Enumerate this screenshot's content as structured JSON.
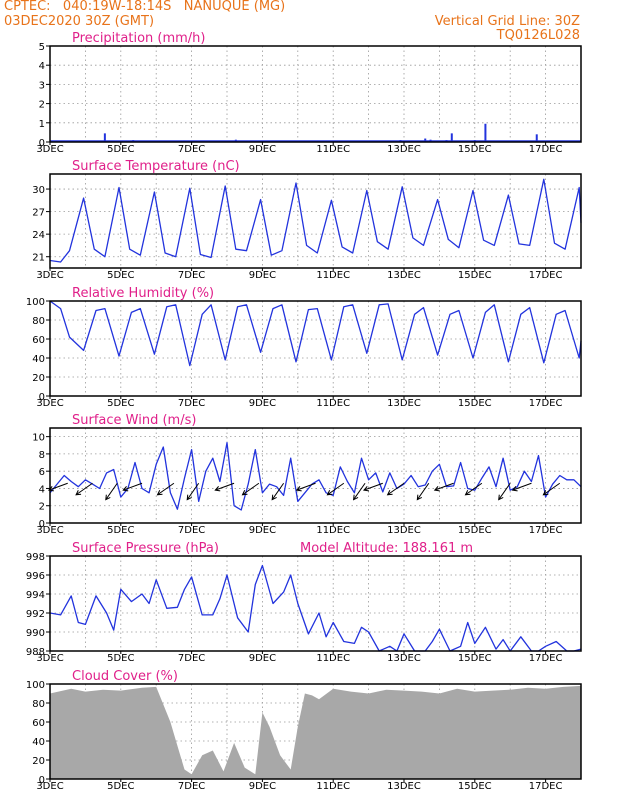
{
  "header": {
    "line1": "CPTEC:   040:19W-18:14S   NANUQUE (MG)",
    "line2": "03DEC2020 30Z (GMT)",
    "grid_note": "Vertical Grid Line: 30Z",
    "code": "TQ0126L028"
  },
  "x_labels": [
    "3DEC",
    "5DEC",
    "7DEC",
    "9DEC",
    "11DEC",
    "13DEC",
    "15DEC",
    "17DEC"
  ],
  "colors": {
    "line": "#2233dd",
    "frame": "#000000",
    "grid": "#999999",
    "cloud": "#a8a8a8",
    "title": "#e0208a",
    "header": "#e8731a"
  },
  "chart_data": [
    {
      "type": "bar",
      "title": "Precipitation (mm/h)",
      "ylim": [
        0,
        5
      ],
      "yticks": [
        0,
        1,
        2,
        3,
        4,
        5
      ],
      "x_days": [
        0,
        15
      ],
      "events": [
        [
          1.55,
          0.45
        ],
        [
          2.35,
          0.1
        ],
        [
          3.8,
          0.08
        ],
        [
          5.25,
          0.12
        ],
        [
          9.9,
          0.1
        ],
        [
          10.6,
          0.18
        ],
        [
          10.75,
          0.12
        ],
        [
          11.2,
          0.1
        ],
        [
          11.35,
          0.45
        ],
        [
          12.0,
          0.1
        ],
        [
          12.3,
          0.95
        ],
        [
          13.75,
          0.4
        ]
      ]
    },
    {
      "type": "line",
      "title": "Surface Temperature (nC)",
      "ylim": [
        19.5,
        32
      ],
      "yticks": [
        21,
        24,
        27,
        30
      ],
      "series": [
        {
          "x": [
            0,
            0.3,
            0.55,
            0.95,
            1.25,
            1.55,
            1.95,
            2.25,
            2.55,
            2.95,
            3.25,
            3.55,
            3.95,
            4.25,
            4.55,
            4.95,
            5.25,
            5.55,
            5.95,
            6.25,
            6.55,
            6.95,
            7.25,
            7.55,
            7.95,
            8.25,
            8.55,
            8.95,
            9.25,
            9.55,
            9.95,
            10.25,
            10.55,
            10.95,
            11.25,
            11.55,
            11.95,
            12.25,
            12.55,
            12.95,
            13.25,
            13.55,
            13.95,
            14.25,
            14.55,
            14.95,
            15
          ],
          "y": [
            20.5,
            20.3,
            21.8,
            28.8,
            22.0,
            21.0,
            30.2,
            22.0,
            21.2,
            29.6,
            21.5,
            21.0,
            30.1,
            21.3,
            20.9,
            30.4,
            22.0,
            21.8,
            28.6,
            21.2,
            21.8,
            30.8,
            22.5,
            21.5,
            28.5,
            22.3,
            21.5,
            29.8,
            23.0,
            22.0,
            30.3,
            23.5,
            22.5,
            28.6,
            23.3,
            22.2,
            29.8,
            23.2,
            22.5,
            29.2,
            22.7,
            22.5,
            31.3,
            22.8,
            22.0,
            30.2,
            25.5
          ]
        }
      ],
      "xlabel": "",
      "ylabel": ""
    },
    {
      "type": "line",
      "title": "Relative Humidity (%)",
      "ylim": [
        0,
        100
      ],
      "yticks": [
        0,
        20,
        40,
        60,
        80,
        100
      ],
      "series": [
        {
          "x": [
            0,
            0.3,
            0.55,
            0.95,
            1.3,
            1.55,
            1.95,
            2.3,
            2.55,
            2.95,
            3.3,
            3.55,
            3.95,
            4.3,
            4.55,
            4.95,
            5.3,
            5.55,
            5.95,
            6.3,
            6.55,
            6.95,
            7.3,
            7.55,
            7.95,
            8.3,
            8.55,
            8.95,
            9.3,
            9.55,
            9.95,
            10.3,
            10.55,
            10.95,
            11.3,
            11.55,
            11.95,
            12.3,
            12.55,
            12.95,
            13.3,
            13.55,
            13.95,
            14.3,
            14.55,
            14.95,
            15
          ],
          "y": [
            100,
            92,
            62,
            48,
            90,
            92,
            42,
            88,
            92,
            44,
            94,
            96,
            32,
            86,
            96,
            38,
            94,
            96,
            46,
            92,
            96,
            36,
            91,
            92,
            38,
            94,
            96,
            45,
            96,
            97,
            38,
            86,
            93,
            43,
            86,
            90,
            40,
            88,
            96,
            36,
            86,
            93,
            35,
            86,
            90,
            40,
            58
          ]
        }
      ],
      "xlabel": "",
      "ylabel": ""
    },
    {
      "type": "line",
      "title": "Surface Wind (m/s)",
      "ylim": [
        0,
        11
      ],
      "yticks": [
        0,
        2,
        4,
        6,
        8,
        10
      ],
      "series": [
        {
          "x": [
            0,
            0.2,
            0.4,
            0.6,
            0.8,
            1.0,
            1.2,
            1.4,
            1.6,
            1.8,
            2.0,
            2.2,
            2.4,
            2.6,
            2.8,
            3.0,
            3.2,
            3.4,
            3.6,
            3.8,
            4.0,
            4.2,
            4.4,
            4.6,
            4.8,
            5.0,
            5.2,
            5.4,
            5.6,
            5.8,
            6.0,
            6.2,
            6.4,
            6.6,
            6.8,
            7.0,
            7.2,
            7.4,
            7.6,
            7.8,
            8.0,
            8.2,
            8.4,
            8.6,
            8.8,
            9.0,
            9.2,
            9.4,
            9.6,
            9.8,
            10.0,
            10.2,
            10.4,
            10.6,
            10.8,
            11.0,
            11.2,
            11.4,
            11.6,
            11.8,
            12.0,
            12.2,
            12.4,
            12.6,
            12.8,
            13.0,
            13.2,
            13.4,
            13.6,
            13.8,
            14.0,
            14.2,
            14.4,
            14.6,
            14.8,
            15.0
          ],
          "y": [
            3.5,
            4.5,
            5.5,
            4.8,
            4.2,
            5.0,
            4.5,
            4.0,
            5.8,
            6.2,
            3.0,
            4.0,
            7.0,
            4.0,
            3.5,
            6.8,
            8.8,
            3.5,
            1.6,
            5.2,
            8.5,
            2.5,
            6.0,
            7.5,
            4.8,
            9.3,
            2.0,
            1.5,
            4.5,
            8.5,
            3.5,
            4.5,
            4.2,
            3.2,
            7.5,
            2.5,
            3.5,
            4.5,
            5.0,
            3.5,
            3.2,
            6.5,
            4.8,
            3.5,
            7.5,
            5.0,
            5.8,
            3.6,
            5.8,
            4.0,
            4.5,
            5.5,
            4.2,
            4.4,
            6.0,
            6.8,
            4.2,
            4.3,
            7.0,
            4.0,
            3.8,
            5.2,
            6.5,
            4.2,
            7.5,
            3.8,
            4.2,
            6.0,
            4.8,
            7.8,
            3.0,
            4.5,
            5.5,
            5.0,
            5.0,
            4.2
          ]
        }
      ],
      "barb_x": [
        0.5,
        1.2,
        1.9,
        2.6,
        3.5,
        4.2,
        5.2,
        5.9,
        6.6,
        7.5,
        8.3,
        8.9,
        9.4,
        10.0,
        10.7,
        11.4,
        12.2,
        13.0,
        13.6,
        14.4
      ],
      "xlabel": "",
      "ylabel": ""
    },
    {
      "type": "line",
      "title": "Surface Pressure (hPa)",
      "altitude_note": "Model Altitude: 188.161  m",
      "ylim": [
        988,
        998
      ],
      "yticks": [
        988,
        990,
        992,
        994,
        996,
        998
      ],
      "series": [
        {
          "x": [
            0,
            0.3,
            0.6,
            0.8,
            1.0,
            1.3,
            1.6,
            1.8,
            2.0,
            2.3,
            2.6,
            2.8,
            3.0,
            3.3,
            3.6,
            3.8,
            4.0,
            4.3,
            4.6,
            4.8,
            5.0,
            5.3,
            5.6,
            5.8,
            6.0,
            6.3,
            6.6,
            6.8,
            7.0,
            7.3,
            7.6,
            7.8,
            8.0,
            8.3,
            8.6,
            8.8,
            9.0,
            9.3,
            9.6,
            9.8,
            10.0,
            10.3,
            10.6,
            10.8,
            11.0,
            11.3,
            11.6,
            11.8,
            12.0,
            12.3,
            12.6,
            12.8,
            13.0,
            13.3,
            13.6,
            13.8,
            14.0,
            14.3,
            14.6,
            14.8,
            15.0
          ],
          "y": [
            992.0,
            991.8,
            993.8,
            991.0,
            990.8,
            993.8,
            992.0,
            990.2,
            994.5,
            993.2,
            994.0,
            993.0,
            995.5,
            992.5,
            992.6,
            994.5,
            995.8,
            991.8,
            991.8,
            993.5,
            996.0,
            991.5,
            990.0,
            995.0,
            997.0,
            993.0,
            994.2,
            996.0,
            993.0,
            989.8,
            992.0,
            989.5,
            991.0,
            989.0,
            988.8,
            990.5,
            990.0,
            987.5,
            988.5,
            987.8,
            989.8,
            987.0,
            987.5,
            989.0,
            990.3,
            988.0,
            988.5,
            991.0,
            988.8,
            990.5,
            988.2,
            989.2,
            988.0,
            989.5,
            987.5,
            987.5,
            988.5,
            989.0,
            987.8,
            988.0,
            988.2
          ]
        }
      ],
      "xlabel": "",
      "ylabel": ""
    },
    {
      "type": "area",
      "title": "Cloud Cover (%)",
      "ylim": [
        0,
        100
      ],
      "yticks": [
        0,
        20,
        40,
        60,
        80,
        100
      ],
      "x": [
        0,
        0.6,
        1.0,
        1.5,
        2.0,
        2.6,
        3.0,
        3.4,
        3.6,
        3.8,
        4.0,
        4.3,
        4.6,
        4.9,
        5.2,
        5.5,
        5.8,
        6.0,
        6.2,
        6.5,
        6.8,
        7.0,
        7.2,
        7.4,
        7.6,
        8.0,
        8.5,
        9.0,
        9.5,
        10.0,
        10.5,
        11.0,
        11.5,
        12.0,
        12.5,
        13.0,
        13.5,
        14.0,
        14.5,
        15.0
      ],
      "y": [
        90,
        95,
        92,
        94,
        93,
        96,
        97,
        60,
        35,
        10,
        5,
        25,
        30,
        8,
        38,
        12,
        5,
        70,
        55,
        25,
        10,
        55,
        90,
        88,
        84,
        95,
        92,
        90,
        94,
        93,
        92,
        90,
        95,
        92,
        93,
        94,
        96,
        95,
        97,
        98
      ]
    }
  ]
}
